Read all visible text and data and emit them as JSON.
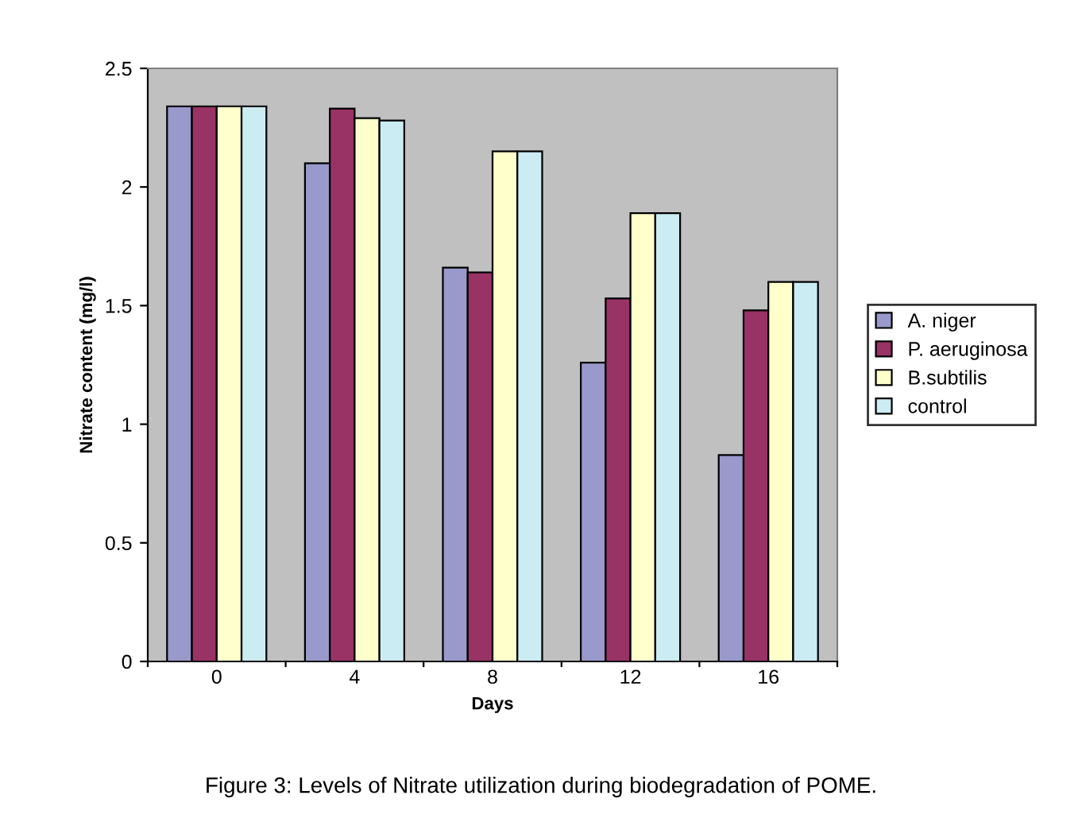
{
  "chart_data": {
    "type": "bar",
    "xlabel": "Days",
    "ylabel": "Nitrate content (mg/l)",
    "categories": [
      "0",
      "4",
      "8",
      "12",
      "16"
    ],
    "series": [
      {
        "name": "A. niger",
        "color": "#9999cc",
        "values": [
          2.34,
          2.1,
          1.66,
          1.26,
          0.87
        ]
      },
      {
        "name": "P. aeruginosa",
        "color": "#993366",
        "values": [
          2.34,
          2.33,
          1.64,
          1.53,
          1.48
        ]
      },
      {
        "name": "B.subtilis",
        "color": "#ffffcc",
        "values": [
          2.34,
          2.29,
          2.15,
          1.89,
          1.6
        ]
      },
      {
        "name": "control",
        "color": "#ccecf4",
        "values": [
          2.34,
          2.28,
          2.15,
          1.89,
          1.6
        ]
      }
    ],
    "ylim": [
      0,
      2.5
    ],
    "yticks": [
      0,
      0.5,
      1,
      1.5,
      2,
      2.5
    ],
    "grid": false,
    "legend": "right",
    "annotations": [
      "Figure 3: Levels of Nitrate utilization during biodegradation of POME."
    ]
  }
}
